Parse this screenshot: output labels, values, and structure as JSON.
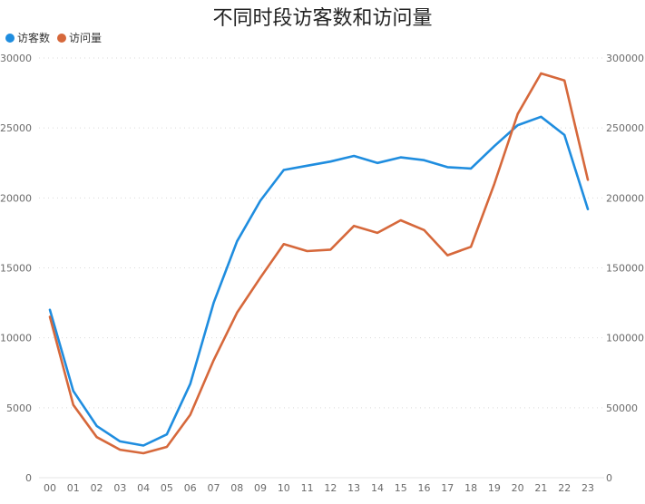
{
  "chart_data": {
    "type": "line",
    "title": "不同时段访客数和访问量",
    "categories": [
      "00",
      "01",
      "02",
      "03",
      "04",
      "05",
      "06",
      "07",
      "08",
      "09",
      "10",
      "11",
      "12",
      "13",
      "14",
      "15",
      "16",
      "17",
      "18",
      "19",
      "20",
      "21",
      "22",
      "23"
    ],
    "series": [
      {
        "name": "访客数",
        "axis": "left",
        "color": "#1f8ddf",
        "values": [
          12000,
          6200,
          3700,
          2600,
          2300,
          3100,
          6700,
          12500,
          16900,
          19800,
          22000,
          22300,
          22600,
          23000,
          22500,
          22900,
          22700,
          22200,
          22100,
          23700,
          25200,
          25800,
          24500,
          19200
        ]
      },
      {
        "name": "访问量",
        "axis": "right",
        "color": "#d6683b",
        "values": [
          115000,
          52000,
          29000,
          20000,
          17500,
          22000,
          45000,
          84000,
          118000,
          143000,
          167000,
          162000,
          163000,
          180000,
          175000,
          184000,
          177000,
          159000,
          165000,
          210000,
          260000,
          289000,
          284000,
          213000
        ]
      }
    ],
    "y_left": {
      "min": 0,
      "max": 30000,
      "ticks": [
        "0",
        "5000",
        "10000",
        "15000",
        "20000",
        "25000",
        "30000"
      ]
    },
    "y_right": {
      "min": 0,
      "max": 300000,
      "ticks": [
        "0",
        "50000",
        "100000",
        "150000",
        "200000",
        "250000",
        "300000"
      ]
    },
    "grid": true,
    "grid_style": "dotted",
    "legend_position": "top-left"
  }
}
